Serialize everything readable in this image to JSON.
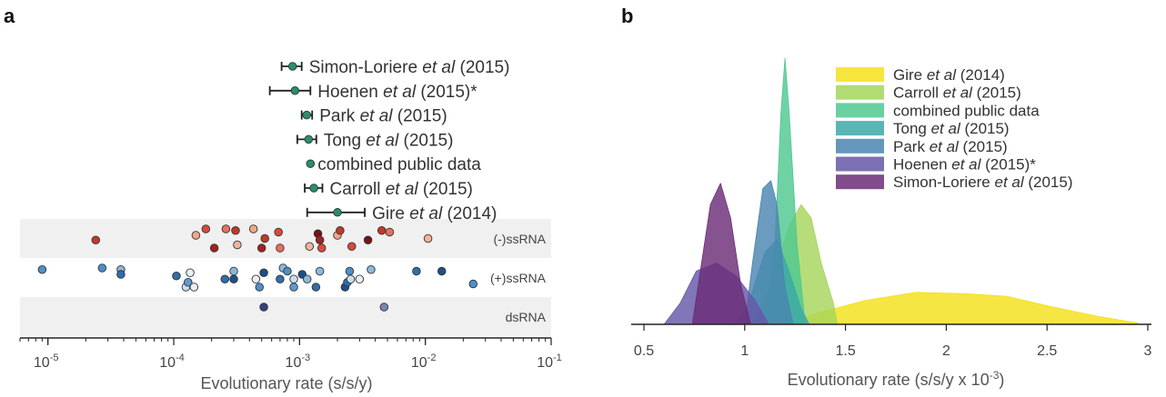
{
  "panel_a": {
    "label": "a"
  },
  "panel_b": {
    "label": "b"
  },
  "chart_data": [
    {
      "type": "scatter",
      "xlabel": "Evolutionary rate (s/s/y)",
      "x_scale": "log10",
      "xlim": [
        6e-06,
        0.1
      ],
      "x_ticks": [
        {
          "value": 1e-05,
          "base": "10",
          "exp": "-5"
        },
        {
          "value": 0.0001,
          "base": "10",
          "exp": "-4"
        },
        {
          "value": 0.001,
          "base": "10",
          "exp": "-3"
        },
        {
          "value": 0.01,
          "base": "10",
          "exp": "-2"
        },
        {
          "value": 0.1,
          "base": "10",
          "exp": "-1"
        }
      ],
      "studies": [
        {
          "prefix": "Simon-Loriere ",
          "etal": "et al",
          "suffix": " (2015)",
          "value": 0.00088,
          "low": 0.00072,
          "high": 0.00104
        },
        {
          "prefix": "Hoenen ",
          "etal": "et al",
          "suffix": " (2015)*",
          "value": 0.00092,
          "low": 0.00058,
          "high": 0.00122
        },
        {
          "prefix": "Park ",
          "etal": "et al",
          "suffix": " (2015)",
          "value": 0.00114,
          "low": 0.00104,
          "high": 0.00126
        },
        {
          "prefix": "Tong ",
          "etal": "et al",
          "suffix": " (2015)",
          "value": 0.00118,
          "low": 0.00096,
          "high": 0.00136
        },
        {
          "prefix": "combined public data",
          "etal": "",
          "suffix": "",
          "value": 0.00122,
          "low": 0.00122,
          "high": 0.00122
        },
        {
          "prefix": "Carroll ",
          "etal": "et al",
          "suffix": " (2015)",
          "value": 0.0013,
          "low": 0.0011,
          "high": 0.00152
        },
        {
          "prefix": "Gire ",
          "etal": "et al",
          "suffix": " (2014)",
          "value": 0.002,
          "low": 0.00115,
          "high": 0.0033
        }
      ],
      "study_colors": {
        "point": "#2e8b6e",
        "bar": "#222222"
      },
      "bands": [
        {
          "label": "(-)ssRNA",
          "background": "#f0f0f0",
          "points": [
            {
              "x": 2.4e-05,
              "j": 0.55,
              "c": "#c0392b"
            },
            {
              "x": 0.00015,
              "j": 0.4,
              "c": "#f2a68a"
            },
            {
              "x": 0.00018,
              "j": 0.2,
              "c": "#d84a3a"
            },
            {
              "x": 0.00021,
              "j": 0.8,
              "c": "#a5211e"
            },
            {
              "x": 0.00026,
              "j": 0.2,
              "c": "#e7705a"
            },
            {
              "x": 0.00031,
              "j": 0.25,
              "c": "#c0392b"
            },
            {
              "x": 0.00032,
              "j": 0.7,
              "c": "#f4b29c"
            },
            {
              "x": 0.00043,
              "j": 0.2,
              "c": "#f2a68a"
            },
            {
              "x": 0.0005,
              "j": 0.8,
              "c": "#a5211e"
            },
            {
              "x": 0.00053,
              "j": 0.5,
              "c": "#c0392b"
            },
            {
              "x": 0.00068,
              "j": 0.3,
              "c": "#d84a3a"
            },
            {
              "x": 0.0007,
              "j": 0.8,
              "c": "#e7705a"
            },
            {
              "x": 0.0012,
              "j": 0.75,
              "c": "#f4b29c"
            },
            {
              "x": 0.0014,
              "j": 0.35,
              "c": "#7a0f14"
            },
            {
              "x": 0.00145,
              "j": 0.55,
              "c": "#a5211e"
            },
            {
              "x": 0.0015,
              "j": 0.8,
              "c": "#d84a3a"
            },
            {
              "x": 0.002,
              "j": 0.4,
              "c": "#f2a68a"
            },
            {
              "x": 0.0021,
              "j": 0.25,
              "c": "#c0392b"
            },
            {
              "x": 0.0026,
              "j": 0.75,
              "c": "#d84a3a"
            },
            {
              "x": 0.0035,
              "j": 0.55,
              "c": "#7a0f14"
            },
            {
              "x": 0.0045,
              "j": 0.25,
              "c": "#c0392b"
            },
            {
              "x": 0.0052,
              "j": 0.3,
              "c": "#e7705a"
            },
            {
              "x": 0.0105,
              "j": 0.5,
              "c": "#f4b29c"
            }
          ]
        },
        {
          "label": "(+)ssRNA",
          "background": "#ffffff",
          "points": [
            {
              "x": 9e-06,
              "j": 0.25,
              "c": "#4d8fc7"
            },
            {
              "x": 2.7e-05,
              "j": 0.2,
              "c": "#4d8fc7"
            },
            {
              "x": 3.8e-05,
              "j": 0.25,
              "c": "#8bb9dc"
            },
            {
              "x": 3.8e-05,
              "j": 0.4,
              "c": "#2f6ea8"
            },
            {
              "x": 0.000105,
              "j": 0.45,
              "c": "#2f6ea8"
            },
            {
              "x": 0.000125,
              "j": 0.8,
              "c": "#c9dff0"
            },
            {
              "x": 0.00013,
              "j": 0.65,
              "c": "#5c9ad2"
            },
            {
              "x": 0.000135,
              "j": 0.35,
              "c": "#e8f1f8"
            },
            {
              "x": 0.000145,
              "j": 0.8,
              "c": "#e8f1f8"
            },
            {
              "x": 0.000255,
              "j": 0.55,
              "c": "#2f6ea8"
            },
            {
              "x": 0.0003,
              "j": 0.55,
              "c": "#1c4f8a"
            },
            {
              "x": 0.0003,
              "j": 0.3,
              "c": "#8bb9dc"
            },
            {
              "x": 0.00045,
              "j": 0.55,
              "c": "#e8f1f8"
            },
            {
              "x": 0.00048,
              "j": 0.8,
              "c": "#4d8fc7"
            },
            {
              "x": 0.00052,
              "j": 0.35,
              "c": "#1c4f8a"
            },
            {
              "x": 0.0007,
              "j": 0.55,
              "c": "#2f6ea8"
            },
            {
              "x": 0.00074,
              "j": 0.2,
              "c": "#8bb9dc"
            },
            {
              "x": 0.0008,
              "j": 0.3,
              "c": "#4d8fc7"
            },
            {
              "x": 0.0009,
              "j": 0.55,
              "c": "#c9dff0"
            },
            {
              "x": 0.0009,
              "j": 0.8,
              "c": "#5c9ad2"
            },
            {
              "x": 0.00105,
              "j": 0.4,
              "c": "#1c4f8a"
            },
            {
              "x": 0.00115,
              "j": 0.55,
              "c": "#8bb9dc"
            },
            {
              "x": 0.00135,
              "j": 0.8,
              "c": "#2f6ea8"
            },
            {
              "x": 0.00145,
              "j": 0.3,
              "c": "#8bb9dc"
            },
            {
              "x": 0.0023,
              "j": 0.8,
              "c": "#1c4f8a"
            },
            {
              "x": 0.0024,
              "j": 0.65,
              "c": "#2f6ea8"
            },
            {
              "x": 0.0025,
              "j": 0.3,
              "c": "#4d8fc7"
            },
            {
              "x": 0.00255,
              "j": 0.55,
              "c": "#c9dff0"
            },
            {
              "x": 0.003,
              "j": 0.55,
              "c": "#e8f1f8"
            },
            {
              "x": 0.0037,
              "j": 0.25,
              "c": "#8bb9dc"
            },
            {
              "x": 0.0085,
              "j": 0.3,
              "c": "#2f6ea8"
            },
            {
              "x": 0.0135,
              "j": 0.3,
              "c": "#1c4f8a"
            },
            {
              "x": 0.024,
              "j": 0.7,
              "c": "#4d8fc7"
            }
          ]
        },
        {
          "label": "dsRNA",
          "background": "#f0f0f0",
          "points": [
            {
              "x": 0.00052,
              "j": 0.2,
              "c": "#3a3f7a"
            },
            {
              "x": 0.0047,
              "j": 0.2,
              "c": "#7b83b8"
            }
          ]
        }
      ]
    },
    {
      "type": "area",
      "xlabel_prefix": "Evolutionary rate (s/s/y x 10",
      "xlabel_exp": "-3",
      "xlabel_suffix": ")",
      "xlim": [
        0.5,
        3
      ],
      "x_ticks": [
        "0.5",
        "1",
        "1.5",
        "2",
        "2.5",
        "3"
      ],
      "ylim": [
        0,
        1
      ],
      "series": [
        {
          "prefix": "Gire ",
          "etal": "et al",
          "suffix": " (2014)",
          "color": "#f4e01a",
          "points": [
            [
              1.18,
              0
            ],
            [
              1.35,
              0.04
            ],
            [
              1.6,
              0.09
            ],
            [
              1.85,
              0.12
            ],
            [
              2.1,
              0.115
            ],
            [
              2.3,
              0.105
            ],
            [
              2.5,
              0.07
            ],
            [
              2.75,
              0.03
            ],
            [
              2.95,
              0.005
            ],
            [
              2.95,
              0
            ]
          ]
        },
        {
          "prefix": "Carroll ",
          "etal": "et al",
          "suffix": " (2015)",
          "color": "#a6d55c",
          "points": [
            [
              1.05,
              0
            ],
            [
              1.15,
              0.2
            ],
            [
              1.22,
              0.37
            ],
            [
              1.28,
              0.45
            ],
            [
              1.33,
              0.4
            ],
            [
              1.38,
              0.23
            ],
            [
              1.44,
              0.08
            ],
            [
              1.46,
              0
            ]
          ]
        },
        {
          "prefix": "combined public data",
          "etal": "",
          "suffix": "",
          "color": "#4fc890",
          "points": [
            [
              1.1,
              0
            ],
            [
              1.15,
              0.3
            ],
            [
              1.18,
              0.8
            ],
            [
              1.2,
              1.0
            ],
            [
              1.22,
              0.8
            ],
            [
              1.26,
              0.3
            ],
            [
              1.3,
              0
            ]
          ]
        },
        {
          "prefix": "Tong ",
          "etal": "et al",
          "suffix": " (2015)",
          "color": "#3da8a8",
          "points": [
            [
              0.95,
              0
            ],
            [
              1.02,
              0.08
            ],
            [
              1.1,
              0.27
            ],
            [
              1.16,
              0.32
            ],
            [
              1.22,
              0.2
            ],
            [
              1.28,
              0.06
            ],
            [
              1.32,
              0
            ]
          ]
        },
        {
          "prefix": "Park ",
          "etal": "et al",
          "suffix": " (2015)",
          "color": "#4a85b0",
          "points": [
            [
              1.0,
              0
            ],
            [
              1.04,
              0.24
            ],
            [
              1.09,
              0.51
            ],
            [
              1.13,
              0.54
            ],
            [
              1.16,
              0.45
            ],
            [
              1.2,
              0.14
            ],
            [
              1.24,
              0
            ]
          ]
        },
        {
          "prefix": "Hoenen ",
          "etal": "et al",
          "suffix": " (2015)*",
          "color": "#6558a8",
          "points": [
            [
              0.6,
              0
            ],
            [
              0.68,
              0.08
            ],
            [
              0.76,
              0.2
            ],
            [
              0.86,
              0.23
            ],
            [
              0.96,
              0.18
            ],
            [
              1.05,
              0.09
            ],
            [
              1.12,
              0
            ]
          ]
        },
        {
          "prefix": "Simon-Loriere ",
          "etal": "et al",
          "suffix": " (2015)",
          "color": "#6b2d78",
          "points": [
            [
              0.74,
              0
            ],
            [
              0.78,
              0.2
            ],
            [
              0.83,
              0.45
            ],
            [
              0.88,
              0.53
            ],
            [
              0.93,
              0.4
            ],
            [
              0.98,
              0.15
            ],
            [
              1.03,
              0
            ]
          ]
        }
      ]
    }
  ]
}
